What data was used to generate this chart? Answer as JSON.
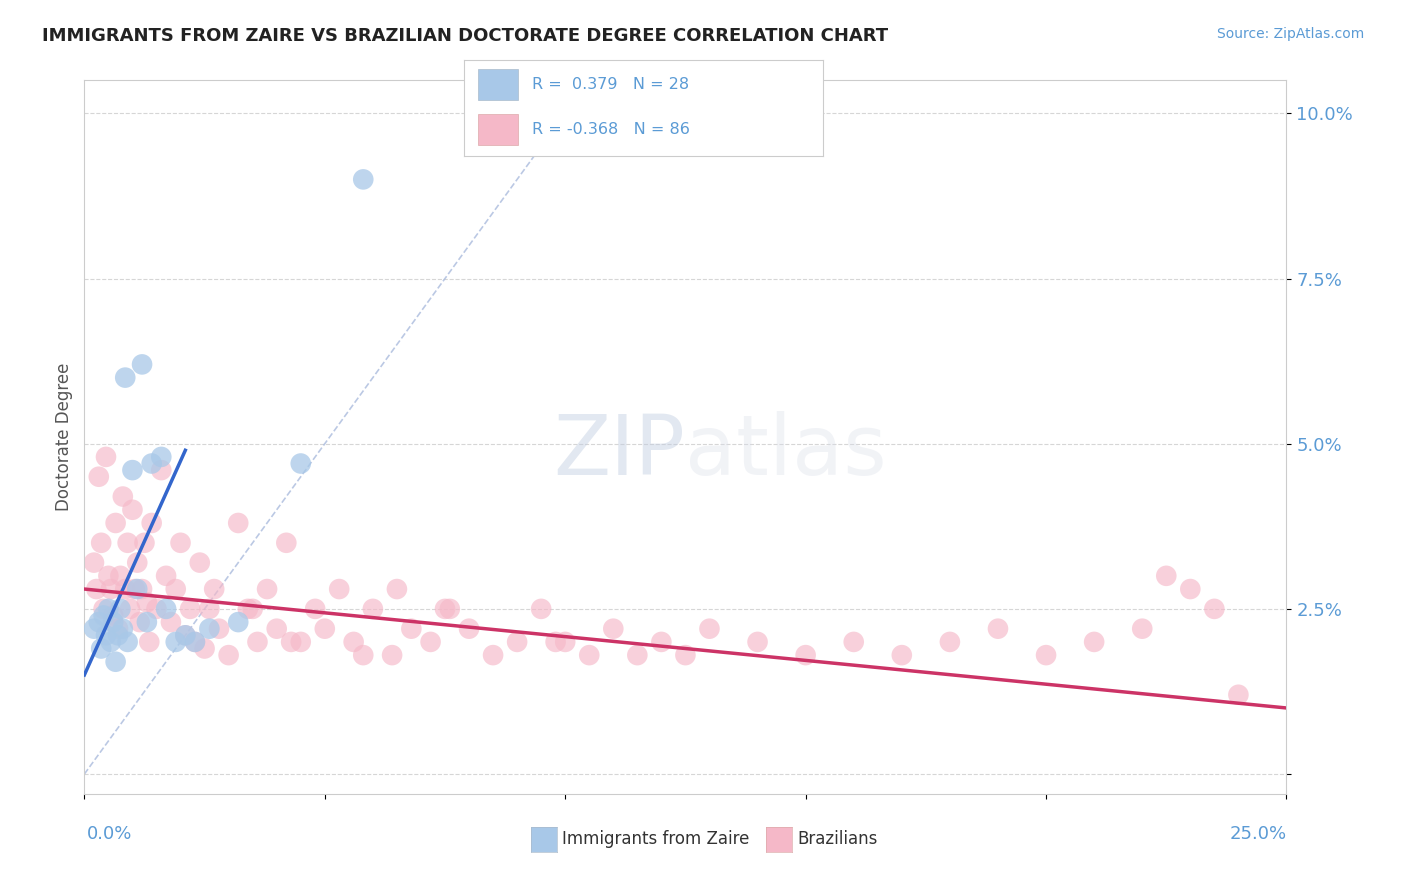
{
  "title": "IMMIGRANTS FROM ZAIRE VS BRAZILIAN DOCTORATE DEGREE CORRELATION CHART",
  "source": "Source: ZipAtlas.com",
  "ylabel": "Doctorate Degree",
  "x_range": [
    0.0,
    25.0
  ],
  "y_range": [
    -0.3,
    10.5
  ],
  "y_ticks": [
    0.0,
    2.5,
    5.0,
    7.5,
    10.0
  ],
  "y_tick_labels": [
    "",
    "2.5%",
    "5.0%",
    "7.5%",
    "10.0%"
  ],
  "color_blue": "#a8c8e8",
  "color_pink": "#f5b8c8",
  "line_blue": "#3366cc",
  "line_pink": "#cc3366",
  "diag_color": "#aabbdd",
  "bg_color": "#ffffff",
  "grid_color": "#cccccc",
  "title_color": "#222222",
  "axis_label_color": "#5b9bd5",
  "legend_text_color": "#5b9bd5",
  "legend_r1_text": "R =  0.379   N = 28",
  "legend_r2_text": "R = -0.368   N = 86",
  "blue_x": [
    0.2,
    0.3,
    0.35,
    0.4,
    0.45,
    0.5,
    0.55,
    0.6,
    0.65,
    0.7,
    0.75,
    0.8,
    0.85,
    0.9,
    1.0,
    1.1,
    1.2,
    1.3,
    1.4,
    1.6,
    1.7,
    1.9,
    2.1,
    2.3,
    2.6,
    3.2,
    4.5,
    5.8
  ],
  "blue_y": [
    2.2,
    2.3,
    1.9,
    2.4,
    2.1,
    2.5,
    2.0,
    2.3,
    1.7,
    2.1,
    2.5,
    2.2,
    6.0,
    2.0,
    4.6,
    2.8,
    6.2,
    2.3,
    4.7,
    4.8,
    2.5,
    2.0,
    2.1,
    2.0,
    2.2,
    2.3,
    4.7,
    9.0
  ],
  "pink_x": [
    0.2,
    0.25,
    0.3,
    0.35,
    0.4,
    0.45,
    0.5,
    0.55,
    0.6,
    0.65,
    0.7,
    0.75,
    0.8,
    0.85,
    0.9,
    0.95,
    1.0,
    1.05,
    1.1,
    1.15,
    1.2,
    1.25,
    1.3,
    1.35,
    1.4,
    1.5,
    1.6,
    1.7,
    1.8,
    1.9,
    2.0,
    2.1,
    2.2,
    2.3,
    2.4,
    2.5,
    2.6,
    2.7,
    2.8,
    3.0,
    3.2,
    3.4,
    3.6,
    3.8,
    4.0,
    4.2,
    4.5,
    4.8,
    5.0,
    5.3,
    5.6,
    6.0,
    6.4,
    6.8,
    7.2,
    7.6,
    8.0,
    8.5,
    9.0,
    9.5,
    10.0,
    10.5,
    11.0,
    11.5,
    12.0,
    12.5,
    13.0,
    14.0,
    15.0,
    16.0,
    17.0,
    18.0,
    19.0,
    20.0,
    21.0,
    22.0,
    22.5,
    23.0,
    23.5,
    24.0,
    3.5,
    4.3,
    5.8,
    6.5,
    7.5,
    9.8
  ],
  "pink_y": [
    3.2,
    2.8,
    4.5,
    3.5,
    2.5,
    4.8,
    3.0,
    2.8,
    2.4,
    3.8,
    2.2,
    3.0,
    4.2,
    2.8,
    3.5,
    2.5,
    4.0,
    2.8,
    3.2,
    2.3,
    2.8,
    3.5,
    2.6,
    2.0,
    3.8,
    2.5,
    4.6,
    3.0,
    2.3,
    2.8,
    3.5,
    2.1,
    2.5,
    2.0,
    3.2,
    1.9,
    2.5,
    2.8,
    2.2,
    1.8,
    3.8,
    2.5,
    2.0,
    2.8,
    2.2,
    3.5,
    2.0,
    2.5,
    2.2,
    2.8,
    2.0,
    2.5,
    1.8,
    2.2,
    2.0,
    2.5,
    2.2,
    1.8,
    2.0,
    2.5,
    2.0,
    1.8,
    2.2,
    1.8,
    2.0,
    1.8,
    2.2,
    2.0,
    1.8,
    2.0,
    1.8,
    2.0,
    2.2,
    1.8,
    2.0,
    2.2,
    3.0,
    2.8,
    2.5,
    1.2,
    2.5,
    2.0,
    1.8,
    2.8,
    2.5,
    2.0
  ],
  "blue_trend_x": [
    0.0,
    2.1
  ],
  "blue_trend_y": [
    1.5,
    4.9
  ],
  "pink_trend_x": [
    0.0,
    25.0
  ],
  "pink_trend_y": [
    2.8,
    1.0
  ]
}
